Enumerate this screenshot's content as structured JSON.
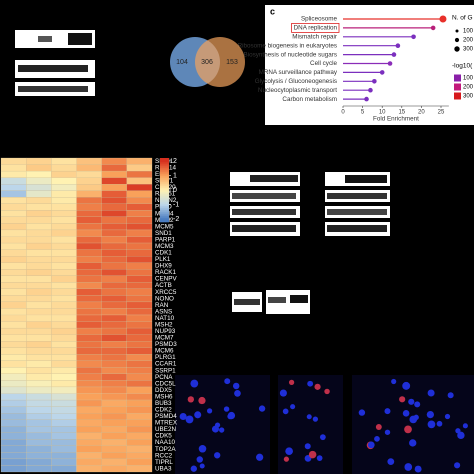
{
  "chart_data": [
    {
      "type": "lollipop",
      "label": "c",
      "categories": [
        "Spliceosome",
        "DNA replication",
        "Mismatch repair",
        "Ribosome biogenesis in eukaryotes",
        "Biosynthesis of nucleotide sugars",
        "Cell cycle",
        "MRNA surveillance pathway",
        "Glycolysis / Gluconeogenesis",
        "Nucleocytoplasmic transport",
        "Carbon metabolism"
      ],
      "values": [
        25.5,
        23,
        18,
        14,
        13,
        12,
        10,
        8,
        7,
        6
      ],
      "colors": [
        "#e8302a",
        "#b8207a",
        "#7b2fbe",
        "#7b2fbe",
        "#7b2fbe",
        "#8a2cb8",
        "#7b2fbe",
        "#7b2fbe",
        "#7b2fbe",
        "#7b2fbe"
      ],
      "highlight_index": 1,
      "xlabel": "Fold Enrichment",
      "xlim": [
        0,
        27
      ],
      "xticks": [
        0,
        5,
        10,
        15,
        20,
        25
      ],
      "size_legend": {
        "title": "N. of G",
        "labels": [
          "100",
          "200",
          "300"
        ]
      },
      "color_legend": {
        "title": "-log10(",
        "labels": [
          "100",
          "200",
          "300"
        ],
        "colors": [
          "#8a1fa8",
          "#c2187a",
          "#d7191c"
        ]
      }
    },
    {
      "type": "heatmap",
      "rows": [
        "SIAH1",
        "RBM14",
        "EMD",
        "SNW1",
        "CDC20",
        "RAD51",
        "NSUN2",
        "PELO",
        "MCM4",
        "MCM2",
        "MCM5",
        "SND1",
        "PARP1",
        "MCM3",
        "CDK1",
        "PLK1",
        "DHX9",
        "RACK1",
        "CENPV",
        "ACTB",
        "XRCC5",
        "NONO",
        "RAN",
        "ASNS",
        "NAT10",
        "MSH2",
        "NUP93",
        "MCM7",
        "PSMD3",
        "MCM6",
        "PLRG1",
        "CCAR1",
        "SSRP1",
        "PCNA",
        "CDC5L",
        "DDX5",
        "MSH6",
        "BUB3",
        "CDK2",
        "PSMD4",
        "MTREX",
        "UBE2N",
        "CDK5",
        "NAA10",
        "TOP2A",
        "RCC2",
        "TIPRL",
        "UBA3"
      ],
      "values": [
        [
          0.3,
          0.4,
          0.2,
          0.6,
          1.2,
          0.8
        ],
        [
          0.2,
          0.5,
          0.3,
          0.7,
          1.5,
          0.5
        ],
        [
          0.1,
          0.0,
          0.4,
          0.3,
          1.0,
          1.4
        ],
        [
          -0.8,
          -0.3,
          0.0,
          0.4,
          1.8,
          0.6
        ],
        [
          -1.0,
          -0.6,
          -0.2,
          0.5,
          1.0,
          1.9
        ],
        [
          -1.2,
          -0.4,
          0.1,
          0.8,
          1.6,
          1.0
        ],
        [
          0.2,
          0.3,
          0.1,
          1.4,
          1.7,
          1.2
        ],
        [
          0.3,
          0.2,
          0.2,
          1.3,
          1.5,
          1.6
        ],
        [
          0.2,
          0.4,
          0.3,
          1.5,
          1.8,
          1.3
        ],
        [
          0.3,
          0.3,
          0.2,
          1.6,
          1.4,
          1.5
        ],
        [
          0.4,
          0.2,
          0.3,
          1.4,
          1.6,
          1.7
        ],
        [
          0.2,
          0.3,
          0.4,
          1.2,
          1.5,
          1.3
        ],
        [
          0.3,
          0.3,
          0.2,
          1.5,
          1.3,
          1.6
        ],
        [
          0.2,
          0.4,
          0.3,
          1.7,
          1.5,
          1.4
        ],
        [
          0.3,
          0.2,
          0.2,
          1.4,
          1.6,
          1.5
        ],
        [
          0.4,
          0.3,
          0.3,
          1.3,
          1.5,
          1.7
        ],
        [
          0.2,
          0.3,
          0.2,
          1.6,
          1.4,
          1.3
        ],
        [
          0.3,
          0.4,
          0.3,
          1.5,
          1.7,
          1.4
        ],
        [
          0.2,
          0.2,
          0.4,
          1.4,
          1.3,
          1.6
        ],
        [
          0.3,
          0.3,
          0.2,
          1.2,
          1.5,
          1.5
        ],
        [
          0.2,
          0.4,
          0.3,
          1.6,
          1.4,
          1.3
        ],
        [
          0.3,
          0.3,
          0.2,
          1.5,
          1.6,
          1.4
        ],
        [
          0.4,
          0.2,
          0.3,
          1.3,
          1.5,
          1.6
        ],
        [
          0.2,
          0.3,
          0.3,
          1.4,
          1.3,
          1.5
        ],
        [
          0.3,
          0.2,
          0.2,
          1.5,
          1.6,
          1.3
        ],
        [
          0.2,
          0.4,
          0.3,
          1.6,
          1.5,
          1.4
        ],
        [
          0.3,
          0.3,
          0.4,
          1.3,
          1.4,
          1.6
        ],
        [
          0.2,
          0.2,
          0.3,
          1.5,
          1.7,
          1.5
        ],
        [
          0.3,
          0.4,
          0.2,
          1.4,
          1.3,
          1.4
        ],
        [
          0.2,
          0.3,
          0.3,
          1.5,
          1.5,
          1.6
        ],
        [
          0.1,
          0.2,
          0.2,
          1.3,
          1.4,
          1.2
        ],
        [
          0.2,
          0.1,
          0.3,
          1.2,
          1.3,
          1.4
        ],
        [
          0.0,
          0.2,
          0.1,
          1.4,
          1.2,
          1.3
        ],
        [
          -0.2,
          0.1,
          0.0,
          1.3,
          1.5,
          1.2
        ],
        [
          -0.3,
          -0.1,
          0.1,
          1.2,
          1.3,
          1.4
        ],
        [
          -0.5,
          -0.3,
          -0.2,
          1.1,
          1.2,
          1.0
        ],
        [
          -1.0,
          -0.8,
          -0.6,
          1.0,
          1.1,
          1.2
        ],
        [
          -1.1,
          -0.9,
          -0.8,
          1.1,
          0.9,
          1.0
        ],
        [
          -1.2,
          -1.0,
          -0.9,
          0.9,
          1.0,
          1.1
        ],
        [
          -1.3,
          -1.1,
          -1.0,
          1.0,
          1.1,
          0.9
        ],
        [
          -1.3,
          -1.2,
          -1.1,
          0.9,
          1.0,
          1.0
        ],
        [
          -1.4,
          -1.2,
          -1.2,
          1.0,
          0.9,
          1.1
        ],
        [
          -1.4,
          -1.3,
          -1.2,
          0.8,
          1.0,
          0.9
        ],
        [
          -1.5,
          -1.3,
          -1.3,
          0.9,
          0.8,
          1.0
        ],
        [
          -1.5,
          -1.4,
          -1.3,
          1.0,
          0.9,
          0.8
        ],
        [
          -1.5,
          -1.4,
          -1.4,
          0.8,
          1.0,
          0.9
        ],
        [
          -1.6,
          -1.5,
          -1.4,
          0.9,
          0.8,
          1.0
        ],
        [
          -1.6,
          -1.5,
          -1.5,
          0.8,
          0.9,
          0.8
        ]
      ],
      "clim": [
        -2.2,
        2.2
      ],
      "cticks": [
        2,
        1,
        0,
        -1,
        -2
      ],
      "colors": [
        "#d7301f",
        "#f9a15a",
        "#fff2b2",
        "#bcd6ea",
        "#4a7cc0"
      ]
    },
    {
      "type": "venn",
      "values": [
        104,
        306,
        153
      ],
      "colors": [
        "#6f9fd8",
        "#f2a25c"
      ]
    }
  ]
}
